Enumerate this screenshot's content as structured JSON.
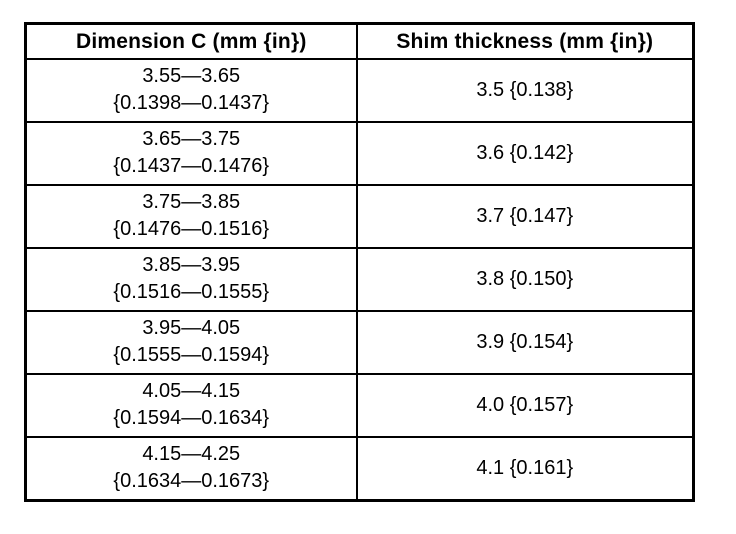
{
  "page": {
    "background_color": "#ffffff",
    "border_color": "#000000",
    "text_color": "#000000"
  },
  "table": {
    "headers": [
      "Dimension C (mm {in})",
      "Shim thickness (mm {in})"
    ],
    "rows": [
      {
        "dimension_mm": "3.55—3.65",
        "dimension_in": "{0.1398—0.1437}",
        "shim_thickness": "3.5 {0.138}"
      },
      {
        "dimension_mm": "3.65—3.75",
        "dimension_in": "{0.1437—0.1476}",
        "shim_thickness": "3.6 {0.142}"
      },
      {
        "dimension_mm": "3.75—3.85",
        "dimension_in": "{0.1476—0.1516}",
        "shim_thickness": "3.7 {0.147}"
      },
      {
        "dimension_mm": "3.85—3.95",
        "dimension_in": "{0.1516—0.1555}",
        "shim_thickness": "3.8 {0.150}"
      },
      {
        "dimension_mm": "3.95—4.05",
        "dimension_in": "{0.1555—0.1594}",
        "shim_thickness": "3.9 {0.154}"
      },
      {
        "dimension_mm": "4.05—4.15",
        "dimension_in": "{0.1594—0.1634}",
        "shim_thickness": "4.0 {0.157}"
      },
      {
        "dimension_mm": "4.15—4.25",
        "dimension_in": "{0.1634—0.1673}",
        "shim_thickness": "4.1 {0.161}"
      }
    ]
  }
}
